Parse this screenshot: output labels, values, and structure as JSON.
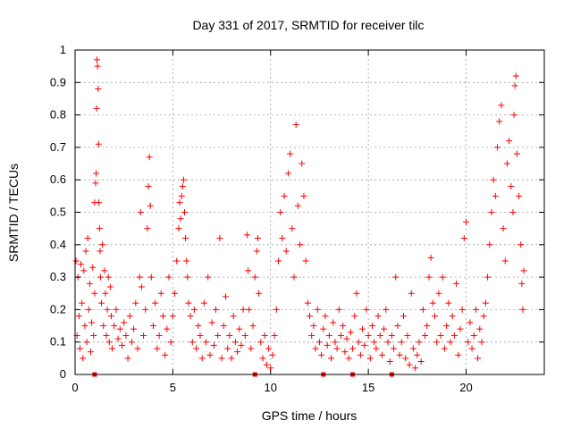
{
  "chart_data": {
    "type": "scatter",
    "title": "Day 331 of 2017, SRMTID for receiver tilc",
    "xlabel": "GPS time / hours",
    "ylabel": "SRMTID / TECUs",
    "xlim": [
      0,
      24
    ],
    "ylim": [
      0,
      1
    ],
    "x_ticks": [
      0,
      5,
      10,
      15,
      20
    ],
    "x_tick_labels": [
      "0",
      "5",
      "10",
      "15",
      "20"
    ],
    "y_ticks": [
      0,
      0.1,
      0.2,
      0.3,
      0.4,
      0.5,
      0.6,
      0.7,
      0.8,
      0.9,
      1
    ],
    "y_tick_labels": [
      "0",
      "0.1",
      "0.2",
      "0.3",
      "0.4",
      "0.5",
      "0.6",
      "0.7",
      "0.8",
      "0.9",
      "1"
    ],
    "grid": true,
    "marker": "+",
    "color": "#ff0000",
    "series": [
      {
        "name": "SRMTID",
        "points": [
          [
            0.05,
            0.35
          ],
          [
            0.1,
            0.12
          ],
          [
            0.15,
            0.3
          ],
          [
            0.2,
            0.18
          ],
          [
            0.25,
            0.08
          ],
          [
            0.3,
            0.34
          ],
          [
            0.35,
            0.22
          ],
          [
            0.4,
            0.05
          ],
          [
            0.45,
            0.32
          ],
          [
            0.5,
            0.15
          ],
          [
            0.55,
            0.38
          ],
          [
            0.6,
            0.1
          ],
          [
            0.65,
            0.42
          ],
          [
            0.7,
            0.2
          ],
          [
            0.75,
            0.28
          ],
          [
            0.8,
            0.07
          ],
          [
            0.85,
            0.16
          ],
          [
            0.9,
            0.33
          ],
          [
            0.95,
            0.12
          ],
          [
            1.0,
            0.25
          ],
          [
            1.0,
            0.53
          ],
          [
            1.05,
            0.59
          ],
          [
            1.08,
            0.62
          ],
          [
            1.1,
            0.82
          ],
          [
            1.12,
            0.97
          ],
          [
            1.15,
            0.95
          ],
          [
            1.18,
            0.88
          ],
          [
            1.2,
            0.71
          ],
          [
            1.22,
            0.53
          ],
          [
            1.25,
            0.45
          ],
          [
            1.28,
            0.38
          ],
          [
            1.3,
            0.3
          ],
          [
            1.35,
            0.22
          ],
          [
            1.4,
            0.4
          ],
          [
            1.45,
            0.15
          ],
          [
            1.5,
            0.32
          ],
          [
            1.55,
            0.25
          ],
          [
            1.6,
            0.12
          ],
          [
            1.65,
            0.2
          ],
          [
            1.7,
            0.3
          ],
          [
            1.75,
            0.1
          ],
          [
            1.8,
            0.27
          ],
          [
            1.85,
            0.18
          ],
          [
            1.9,
            0.08
          ],
          [
            2.0,
            0.15
          ],
          [
            2.1,
            0.2
          ],
          [
            2.2,
            0.11
          ],
          [
            2.3,
            0.14
          ],
          [
            2.4,
            0.09
          ],
          [
            2.5,
            0.16
          ],
          [
            2.6,
            0.12
          ],
          [
            2.7,
            0.05
          ],
          [
            2.8,
            0.18
          ],
          [
            2.9,
            0.1
          ],
          [
            3.0,
            0.14
          ],
          [
            3.1,
            0.22
          ],
          [
            3.2,
            0.08
          ],
          [
            3.3,
            0.3
          ],
          [
            3.35,
            0.5
          ],
          [
            3.4,
            0.27
          ],
          [
            3.5,
            0.12
          ],
          [
            3.6,
            0.2
          ],
          [
            3.7,
            0.45
          ],
          [
            3.75,
            0.58
          ],
          [
            3.8,
            0.67
          ],
          [
            3.85,
            0.52
          ],
          [
            3.9,
            0.3
          ],
          [
            4.0,
            0.15
          ],
          [
            4.1,
            0.22
          ],
          [
            4.2,
            0.08
          ],
          [
            4.3,
            0.12
          ],
          [
            4.4,
            0.25
          ],
          [
            4.5,
            0.18
          ],
          [
            4.6,
            0.06
          ],
          [
            4.7,
            0.14
          ],
          [
            4.8,
            0.3
          ],
          [
            4.9,
            0.1
          ],
          [
            5.0,
            0.18
          ],
          [
            5.1,
            0.25
          ],
          [
            5.2,
            0.35
          ],
          [
            5.3,
            0.45
          ],
          [
            5.35,
            0.53
          ],
          [
            5.4,
            0.48
          ],
          [
            5.45,
            0.55
          ],
          [
            5.5,
            0.58
          ],
          [
            5.55,
            0.6
          ],
          [
            5.6,
            0.5
          ],
          [
            5.65,
            0.42
          ],
          [
            5.7,
            0.35
          ],
          [
            5.75,
            0.3
          ],
          [
            5.8,
            0.22
          ],
          [
            5.9,
            0.18
          ],
          [
            6.0,
            0.1
          ],
          [
            6.1,
            0.2
          ],
          [
            6.2,
            0.08
          ],
          [
            6.3,
            0.15
          ],
          [
            6.4,
            0.12
          ],
          [
            6.5,
            0.05
          ],
          [
            6.6,
            0.22
          ],
          [
            6.7,
            0.1
          ],
          [
            6.8,
            0.3
          ],
          [
            6.9,
            0.06
          ],
          [
            7.0,
            0.16
          ],
          [
            7.1,
            0.09
          ],
          [
            7.2,
            0.2
          ],
          [
            7.3,
            0.12
          ],
          [
            7.4,
            0.42
          ],
          [
            7.5,
            0.05
          ],
          [
            7.6,
            0.15
          ],
          [
            7.7,
            0.24
          ],
          [
            7.8,
            0.08
          ],
          [
            7.9,
            0.12
          ],
          [
            8.0,
            0.05
          ],
          [
            8.1,
            0.18
          ],
          [
            8.2,
            0.1
          ],
          [
            8.3,
            0.07
          ],
          [
            8.4,
            0.14
          ],
          [
            8.5,
            0.09
          ],
          [
            8.6,
            0.2
          ],
          [
            8.7,
            0.12
          ],
          [
            8.8,
            0.43
          ],
          [
            8.85,
            0.32
          ],
          [
            8.9,
            0.2
          ],
          [
            9.0,
            0.08
          ],
          [
            9.1,
            0.15
          ],
          [
            9.2,
            0.3
          ],
          [
            9.3,
            0.38
          ],
          [
            9.35,
            0.42
          ],
          [
            9.4,
            0.25
          ],
          [
            9.5,
            0.1
          ],
          [
            9.6,
            0.05
          ],
          [
            9.7,
            0.12
          ],
          [
            9.8,
            0.03
          ],
          [
            9.9,
            0.08
          ],
          [
            10.0,
            0.02
          ],
          [
            10.1,
            0.06
          ],
          [
            10.2,
            0.12
          ],
          [
            10.3,
            0.2
          ],
          [
            10.4,
            0.35
          ],
          [
            10.5,
            0.5
          ],
          [
            10.6,
            0.42
          ],
          [
            10.7,
            0.55
          ],
          [
            10.8,
            0.38
          ],
          [
            10.9,
            0.62
          ],
          [
            11.0,
            0.68
          ],
          [
            11.1,
            0.45
          ],
          [
            11.2,
            0.3
          ],
          [
            11.3,
            0.77
          ],
          [
            11.4,
            0.52
          ],
          [
            11.5,
            0.4
          ],
          [
            11.6,
            0.65
          ],
          [
            11.7,
            0.55
          ],
          [
            11.8,
            0.35
          ],
          [
            11.9,
            0.22
          ],
          [
            12.0,
            0.18
          ],
          [
            12.1,
            0.12
          ],
          [
            12.2,
            0.15
          ],
          [
            12.3,
            0.08
          ],
          [
            12.4,
            0.2
          ],
          [
            12.5,
            0.1
          ],
          [
            12.6,
            0.06
          ],
          [
            12.7,
            0.14
          ],
          [
            12.8,
            0.18
          ],
          [
            12.9,
            0.09
          ],
          [
            13.0,
            0.12
          ],
          [
            13.1,
            0.05
          ],
          [
            13.2,
            0.16
          ],
          [
            13.3,
            0.1
          ],
          [
            13.4,
            0.08
          ],
          [
            13.5,
            0.2
          ],
          [
            13.6,
            0.12
          ],
          [
            13.7,
            0.15
          ],
          [
            13.8,
            0.07
          ],
          [
            13.9,
            0.11
          ],
          [
            14.0,
            0.05
          ],
          [
            14.1,
            0.13
          ],
          [
            14.2,
            0.08
          ],
          [
            14.3,
            0.18
          ],
          [
            14.4,
            0.25
          ],
          [
            14.5,
            0.1
          ],
          [
            14.6,
            0.06
          ],
          [
            14.7,
            0.14
          ],
          [
            14.8,
            0.09
          ],
          [
            14.9,
            0.2
          ],
          [
            15.0,
            0.12
          ],
          [
            15.1,
            0.05
          ],
          [
            15.2,
            0.15
          ],
          [
            15.3,
            0.1
          ],
          [
            15.4,
            0.08
          ],
          [
            15.5,
            0.18
          ],
          [
            15.6,
            0.12
          ],
          [
            15.7,
            0.06
          ],
          [
            15.8,
            0.14
          ],
          [
            15.9,
            0.2
          ],
          [
            16.0,
            0.1
          ],
          [
            16.1,
            0.04
          ],
          [
            16.2,
            0.12
          ],
          [
            16.3,
            0.08
          ],
          [
            16.4,
            0.3
          ],
          [
            16.5,
            0.15
          ],
          [
            16.6,
            0.06
          ],
          [
            16.7,
            0.1
          ],
          [
            16.8,
            0.18
          ],
          [
            16.9,
            0.05
          ],
          [
            17.0,
            0.12
          ],
          [
            17.1,
            0.03
          ],
          [
            17.2,
            0.25
          ],
          [
            17.3,
            0.08
          ],
          [
            17.4,
            0.02
          ],
          [
            17.5,
            0.06
          ],
          [
            17.6,
            0.1
          ],
          [
            17.7,
            0.04
          ],
          [
            17.8,
            0.2
          ],
          [
            17.9,
            0.12
          ],
          [
            18.0,
            0.15
          ],
          [
            18.1,
            0.3
          ],
          [
            18.2,
            0.36
          ],
          [
            18.3,
            0.22
          ],
          [
            18.4,
            0.18
          ],
          [
            18.5,
            0.1
          ],
          [
            18.6,
            0.25
          ],
          [
            18.7,
            0.12
          ],
          [
            18.8,
            0.3
          ],
          [
            18.9,
            0.08
          ],
          [
            19.0,
            0.15
          ],
          [
            19.1,
            0.22
          ],
          [
            19.2,
            0.1
          ],
          [
            19.3,
            0.18
          ],
          [
            19.4,
            0.12
          ],
          [
            19.5,
            0.28
          ],
          [
            19.6,
            0.06
          ],
          [
            19.7,
            0.14
          ],
          [
            19.8,
            0.2
          ],
          [
            19.9,
            0.42
          ],
          [
            20.0,
            0.47
          ],
          [
            20.1,
            0.1
          ],
          [
            20.2,
            0.16
          ],
          [
            20.3,
            0.08
          ],
          [
            20.4,
            0.12
          ],
          [
            20.5,
            0.2
          ],
          [
            20.6,
            0.05
          ],
          [
            20.7,
            0.14
          ],
          [
            20.8,
            0.1
          ],
          [
            20.9,
            0.18
          ],
          [
            21.0,
            0.22
          ],
          [
            21.1,
            0.3
          ],
          [
            21.2,
            0.4
          ],
          [
            21.3,
            0.5
          ],
          [
            21.4,
            0.6
          ],
          [
            21.5,
            0.55
          ],
          [
            21.6,
            0.7
          ],
          [
            21.7,
            0.78
          ],
          [
            21.8,
            0.83
          ],
          [
            21.9,
            0.45
          ],
          [
            22.0,
            0.35
          ],
          [
            22.1,
            0.65
          ],
          [
            22.2,
            0.72
          ],
          [
            22.3,
            0.58
          ],
          [
            22.4,
            0.5
          ],
          [
            22.45,
            0.8
          ],
          [
            22.5,
            0.89
          ],
          [
            22.55,
            0.92
          ],
          [
            22.6,
            0.68
          ],
          [
            22.7,
            0.55
          ],
          [
            22.8,
            0.4
          ],
          [
            22.85,
            0.28
          ],
          [
            22.9,
            0.2
          ],
          [
            22.95,
            0.32
          ]
        ]
      }
    ],
    "zero_markers_x": [
      1.0,
      9.2,
      12.7,
      14.2,
      16.2
    ]
  }
}
